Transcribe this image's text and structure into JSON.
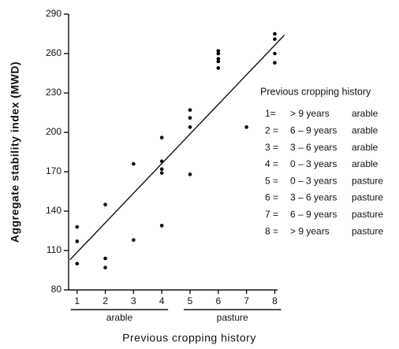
{
  "chart_data": {
    "type": "scatter",
    "x_label": "Previous cropping history",
    "y_label": "Aggregate stability index (MWD)",
    "x": [
      1,
      1,
      1,
      2,
      2,
      2,
      3,
      3,
      4,
      4,
      4,
      4,
      4,
      5,
      5,
      5,
      5,
      6,
      6,
      6,
      6,
      6,
      7,
      8,
      8,
      8,
      8
    ],
    "values": [
      128,
      117,
      100,
      145,
      104,
      97,
      176,
      118,
      196,
      178,
      172,
      169,
      129,
      217,
      211,
      204,
      168,
      262,
      260,
      256,
      254,
      249,
      204,
      275,
      271,
      260,
      253
    ],
    "color": "#000000",
    "fit_line": {
      "x": [
        0.75,
        8.34
      ],
      "y": [
        103,
        274
      ]
    },
    "xlim": [
      0.7,
      8.1
    ],
    "ylim": [
      80,
      290
    ],
    "xticks": [
      1,
      2,
      3,
      4,
      5,
      6,
      7,
      8
    ],
    "yticks": [
      80,
      110,
      140,
      170,
      200,
      230,
      260,
      290
    ],
    "groups": [
      "arable",
      "pasture"
    ],
    "legend": {
      "title": "Previous cropping history",
      "rows": [
        [
          "1=",
          "> 9 years",
          "arable"
        ],
        [
          "2 =",
          "6 – 9 years",
          "arable"
        ],
        [
          "3 =",
          "3 – 6 years",
          "arable"
        ],
        [
          "4 =",
          "0 – 3 years",
          "arable"
        ],
        [
          "5 =",
          "0 – 3 years",
          "pasture"
        ],
        [
          "6 =",
          "3 – 6 years",
          "pasture"
        ],
        [
          "7 =",
          "6 – 9 years",
          "pasture"
        ],
        [
          "8 =",
          "> 9 years",
          "pasture"
        ]
      ]
    }
  }
}
